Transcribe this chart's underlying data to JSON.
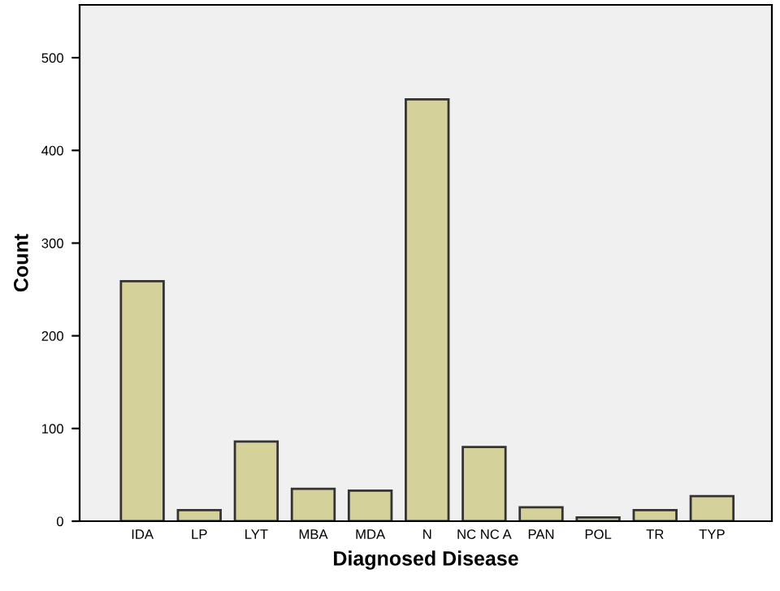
{
  "chart_data": {
    "type": "bar",
    "xlabel": "Diagnosed Disease",
    "ylabel": "Count",
    "categories": [
      "IDA",
      "LP",
      "LYT",
      "MBA",
      "MDA",
      "N",
      "NC NC A",
      "PAN",
      "POL",
      "TR",
      "TYP"
    ],
    "values": [
      259,
      12,
      86,
      35,
      33,
      455,
      80,
      15,
      4,
      12,
      27
    ],
    "color": "#d5d19a",
    "ylim": [
      0,
      557
    ],
    "yticks": [
      0,
      100,
      200,
      300,
      400,
      500
    ],
    "grid": false
  }
}
